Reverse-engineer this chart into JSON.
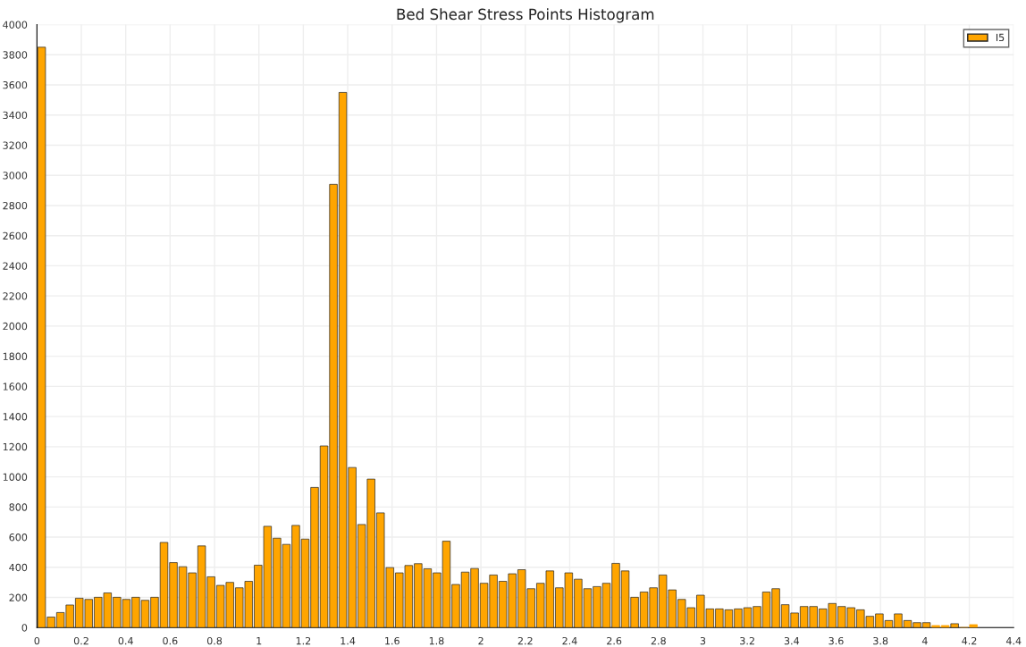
{
  "chart_data": {
    "type": "histogram",
    "title": "Bed Shear Stress Points Histogram",
    "bins": [
      0,
      0.0424,
      0.0848,
      0.1272,
      0.1696,
      0.212,
      0.2544,
      0.2968,
      0.3392,
      0.3816,
      0.424,
      0.4664,
      0.5088,
      0.5512,
      0.5936,
      0.636,
      0.6784,
      0.7208,
      0.7632,
      0.8056,
      0.848,
      0.8904,
      0.9328,
      0.9752,
      1.0176,
      1.06,
      1.1024,
      1.1448,
      1.1872,
      1.2296,
      1.272,
      1.3144,
      1.3568,
      1.3992,
      1.4416,
      1.484,
      1.5264,
      1.5688,
      1.6112,
      1.6536,
      1.696,
      1.7384,
      1.7808,
      1.8232,
      1.8656,
      1.908,
      1.9504,
      1.9928,
      2.0352,
      2.0776,
      2.12,
      2.1624,
      2.2048,
      2.2472,
      2.2896,
      2.332,
      2.3744,
      2.4168,
      2.4592,
      2.5016,
      2.544,
      2.5864,
      2.6288,
      2.6712,
      2.7136,
      2.756,
      2.7984,
      2.8408,
      2.8832,
      2.9256,
      2.968,
      3.0104,
      3.0528,
      3.0952,
      3.1376,
      3.18,
      3.2224,
      3.2648,
      3.3072,
      3.3496,
      3.392,
      3.4344,
      3.4768,
      3.5192,
      3.5616,
      3.604,
      3.6464,
      3.6888,
      3.7312,
      3.7736,
      3.816,
      3.8584,
      3.9008,
      3.9432,
      3.9856,
      4.028,
      4.0704,
      4.1128,
      4.1552,
      4.1976,
      4.24
    ],
    "series": [
      {
        "name": "I5",
        "color": "#ffa500",
        "values": [
          3850,
          70,
          100,
          150,
          195,
          187,
          201,
          230,
          201,
          187,
          201,
          181,
          201,
          565,
          431,
          404,
          363,
          542,
          337,
          280,
          300,
          264,
          307,
          414,
          672,
          593,
          552,
          678,
          587,
          930,
          1205,
          2940,
          3550,
          1062,
          684,
          985,
          761,
          398,
          363,
          412,
          424,
          390,
          363,
          573,
          286,
          368,
          392,
          294,
          349,
          307,
          357,
          384,
          258,
          294,
          376,
          264,
          363,
          321,
          258,
          272,
          294,
          426,
          376,
          201,
          236,
          264,
          349,
          250,
          187,
          132,
          215,
          124,
          124,
          118,
          124,
          132,
          140,
          236,
          258,
          152,
          97,
          140,
          140,
          124,
          160,
          140,
          132,
          118,
          75,
          91,
          47,
          91,
          47,
          33,
          33,
          14,
          14,
          26,
          0,
          20
        ]
      }
    ],
    "xlim": [
      0,
      4.4
    ],
    "xticks": [
      0,
      0.2,
      0.4,
      0.6,
      0.8,
      1,
      1.2,
      1.4,
      1.6,
      1.8,
      2,
      2.2,
      2.4,
      2.6,
      2.8,
      3,
      3.2,
      3.4,
      3.6,
      3.8,
      4,
      4.2,
      4.4
    ],
    "ylim": [
      0,
      4000
    ],
    "yticks": [
      0,
      200,
      400,
      600,
      800,
      1000,
      1200,
      1400,
      1600,
      1800,
      2000,
      2200,
      2400,
      2600,
      2800,
      3000,
      3200,
      3400,
      3600,
      3800,
      4000
    ],
    "grid": true,
    "legend": "top right"
  }
}
